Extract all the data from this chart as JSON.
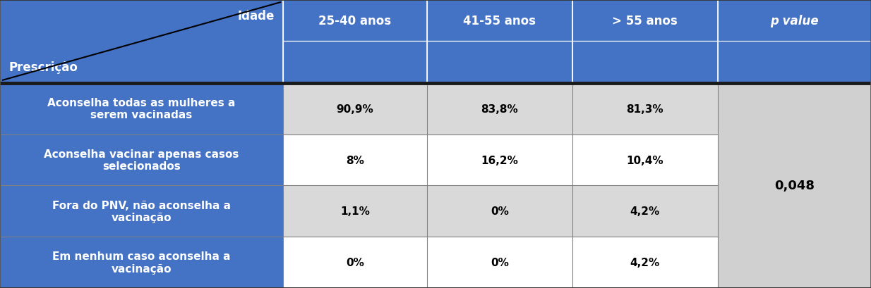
{
  "header_bg": "#4472C4",
  "cell_bg_dark": "#D9D9D9",
  "cell_bg_light": "#FFFFFF",
  "pval_bg": "#D0D0D0",
  "col_headers": [
    "25-40 anos",
    "41-55 anos",
    "> 55 anos",
    "p value"
  ],
  "row_labels": [
    "Aconselha todas as mulheres a\nserem vacinadas",
    "Aconselha vacinar apenas casos\nselecionados",
    "Fora do PNV, não aconselha a\nvacinação",
    "Em nenhum caso aconselha a\nvacinação"
  ],
  "data": [
    [
      "90,9%",
      "83,8%",
      "81,3%"
    ],
    [
      "8%",
      "16,2%",
      "10,4%"
    ],
    [
      "1,1%",
      "0%",
      "4,2%"
    ],
    [
      "0%",
      "0%",
      "4,2%"
    ]
  ],
  "p_value": "0,048",
  "corner_top": "Idade",
  "corner_bottom": "Prescrição",
  "cell_fontsize": 11,
  "header_fontsize": 12,
  "label_fontsize": 11
}
